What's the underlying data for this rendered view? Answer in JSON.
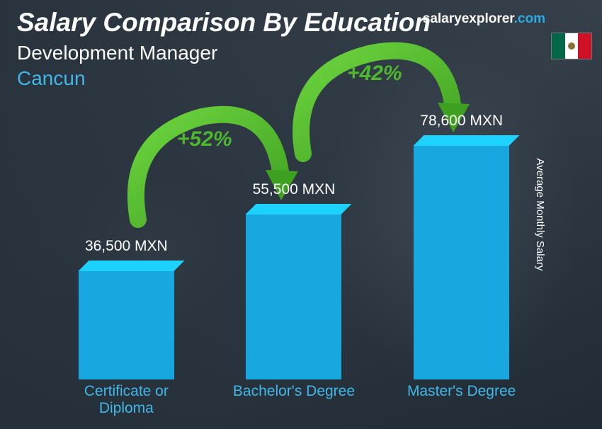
{
  "header": {
    "main_title": "Salary Comparison By Education",
    "subtitle": "Development Manager",
    "location": "Cancun",
    "location_color": "#3fb8e8"
  },
  "brand": {
    "name": "salaryexplorer",
    "suffix": ".com"
  },
  "y_axis_label": "Average Monthly Salary",
  "chart": {
    "type": "bar",
    "bar_color": "#18a8e0",
    "label_color": "#3fb8e8",
    "value_color": "#ffffff",
    "max_value": 78600,
    "max_bar_height": 330,
    "bars": [
      {
        "label": "Certificate or Diploma",
        "value": 36500,
        "value_text": "36,500 MXN"
      },
      {
        "label": "Bachelor's Degree",
        "value": 55500,
        "value_text": "55,500 MXN"
      },
      {
        "label": "Master's Degree",
        "value": 78600,
        "value_text": "78,600 MXN"
      }
    ],
    "increases": [
      {
        "text": "+52%",
        "color": "#4db82e"
      },
      {
        "text": "+42%",
        "color": "#4db82e"
      }
    ]
  },
  "flag": {
    "country": "Mexico"
  }
}
